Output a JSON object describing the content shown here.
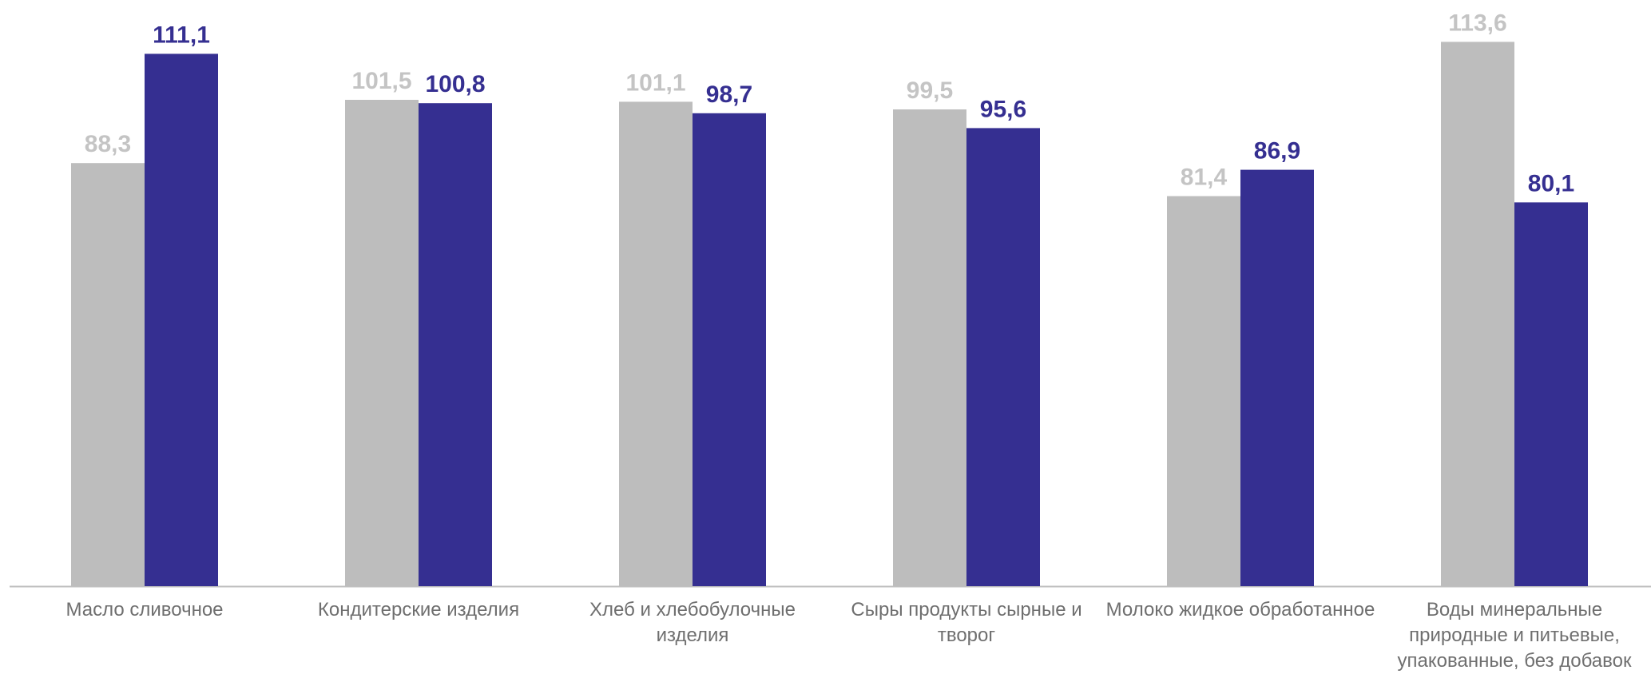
{
  "chart_data": {
    "type": "bar",
    "categories": [
      "Масло сливочное",
      "Кондитерские изделия",
      "Хлеб и хлебобулочные изделия",
      "Сыры продукты сырные и творог",
      "Молоко жидкое обработанное",
      "Воды минеральные природные и питьевые, упакованные, без добавок"
    ],
    "series": [
      {
        "color": "#bdbdbd",
        "label_color": "#c4c4c4",
        "values": [
          88.3,
          101.5,
          101.1,
          99.5,
          81.4,
          113.6
        ],
        "labels": [
          "88,3",
          "101,5",
          "101,1",
          "99,5",
          "81,4",
          "113,6"
        ]
      },
      {
        "color": "#352f91",
        "label_color": "#352f91",
        "values": [
          111.1,
          100.8,
          98.7,
          95.6,
          86.9,
          80.1
        ],
        "labels": [
          "111,1",
          "100,8",
          "98,7",
          "95,6",
          "86,9",
          "80,1"
        ]
      }
    ],
    "title": "",
    "xlabel": "",
    "ylabel": "",
    "ylim": [
      0,
      122.8
    ],
    "grid": false,
    "legend": "none",
    "axis_color": "#bfbfbf"
  }
}
